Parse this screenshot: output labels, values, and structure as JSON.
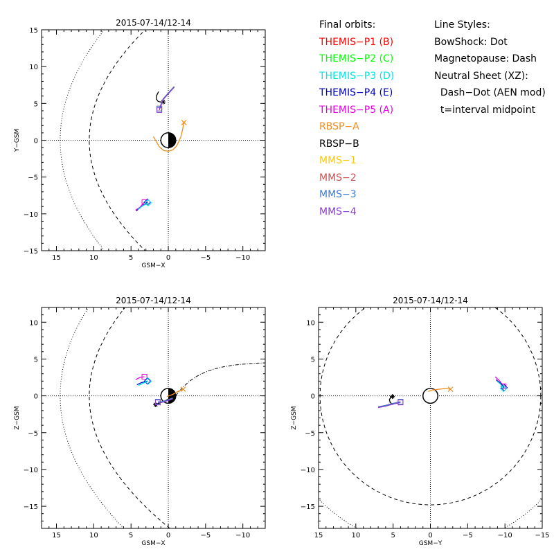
{
  "colors": {
    "THEMIS-P1 (B)": "#ff0000",
    "THEMIS-P2 (C)": "#00ff00",
    "THEMIS-P3 (D)": "#00e5e5",
    "THEMIS-P4 (E)": "#0000c8",
    "THEMIS-P5 (A)": "#e600e6",
    "RBSP-A": "#f28c1a",
    "RBSP-B": "#000000",
    "MMS-1": "#ffc800",
    "MMS-2": "#cc5050",
    "MMS-3": "#3c7ed2",
    "MMS-4": "#8a3cd2"
  },
  "legend": {
    "orbits_title": "Final orbits:",
    "orbits": [
      "THEMIS-P1 (B)",
      "THEMIS-P2 (C)",
      "THEMIS-P3 (D)",
      "THEMIS-P4 (E)",
      "THEMIS-P5 (A)",
      "RBSP-A",
      "RBSP-B",
      "MMS-1",
      "MMS-2",
      "MMS-3",
      "MMS-4"
    ],
    "styles_title": "Line Styles:",
    "styles": [
      "BowShock: Dot",
      "Magnetopause: Dash",
      "Neutral Sheet (XZ):",
      "  Dash-Dot (AEN mod)",
      "  t=interval midpoint"
    ]
  },
  "chart_data": [
    {
      "type": "line",
      "title": "2015-07-14/12-14",
      "xlabel": "GSM-X",
      "ylabel": "Y-GSM",
      "xlim": [
        17,
        -13
      ],
      "ylim": [
        15,
        -15
      ],
      "xticks": [
        15,
        10,
        5,
        0,
        -5,
        -10
      ],
      "yticks": [
        -15,
        -10,
        -5,
        0,
        5,
        10,
        15
      ],
      "boundaries": {
        "bowshock": "dot",
        "magnetopause": "dash",
        "zero_lines": "dot"
      },
      "earth": {
        "radius": 1,
        "night_side": "black"
      },
      "series": [
        {
          "name": "RBSP-A",
          "x": [
            2.0,
            1.2,
            0.6,
            0.0,
            -0.6,
            -1.1,
            -1.4,
            -1.7,
            -1.9,
            -2.1
          ],
          "y": [
            0.5,
            -0.9,
            -1.4,
            -1.5,
            -1.3,
            -0.8,
            -0.2,
            0.5,
            1.4,
            2.4
          ],
          "end_marker": "x"
        },
        {
          "name": "RBSP-B",
          "x": [
            1.3,
            1.6,
            1.6,
            1.4,
            1.1,
            0.7
          ],
          "y": [
            6.6,
            6.0,
            5.6,
            5.3,
            5.2,
            5.2
          ],
          "end_marker": "asterisk"
        },
        {
          "name": "MMS-1",
          "x": [
            -0.8,
            0.0,
            0.7,
            1.2
          ],
          "y": [
            7.3,
            6.4,
            5.6,
            4.3
          ],
          "end_marker": "square"
        },
        {
          "name": "MMS-2",
          "x": [
            -0.8,
            0.0,
            0.7,
            1.2
          ],
          "y": [
            7.3,
            6.4,
            5.6,
            4.3
          ],
          "end_marker": "square"
        },
        {
          "name": "MMS-3",
          "x": [
            -0.8,
            0.0,
            0.7,
            1.2
          ],
          "y": [
            7.3,
            6.4,
            5.6,
            4.3
          ],
          "end_marker": "square"
        },
        {
          "name": "MMS-4",
          "x": [
            -0.8,
            0.0,
            0.7,
            1.2
          ],
          "y": [
            7.2,
            6.3,
            5.5,
            4.1
          ],
          "end_marker": "square"
        },
        {
          "name": "THEMIS-P5 (A)",
          "x": [
            4.4,
            3.8,
            3.2
          ],
          "y": [
            -9.5,
            -9.1,
            -8.4
          ],
          "end_marker": "square"
        },
        {
          "name": "THEMIS-P4 (E)",
          "x": [
            4.3,
            3.6,
            2.8
          ],
          "y": [
            -9.6,
            -9.0,
            -8.4
          ],
          "end_marker": "diamond"
        },
        {
          "name": "THEMIS-P3 (D)",
          "x": [
            4.1,
            3.4,
            2.7
          ],
          "y": [
            -9.4,
            -8.9,
            -8.5
          ],
          "end_marker": "diamond"
        }
      ]
    },
    {
      "type": "line",
      "title": "2015-07-14/12-14",
      "xlabel": "GSM-X",
      "ylabel": "Z-GSM",
      "xlim": [
        17,
        -13
      ],
      "ylim": [
        12,
        -18
      ],
      "xticks": [
        15,
        10,
        5,
        0,
        -5,
        -10
      ],
      "yticks": [
        10,
        5,
        0,
        -5,
        -10,
        -15
      ],
      "boundaries": {
        "bowshock": "dot",
        "magnetopause": "dash",
        "neutral_sheet": "dash-dot",
        "zero_lines": "dot"
      },
      "earth": {
        "radius": 1,
        "night_side": "black"
      },
      "series": [
        {
          "name": "RBSP-A",
          "x": [
            0.2,
            -0.6,
            -1.3,
            -2.0
          ],
          "y": [
            -0.1,
            0.2,
            0.6,
            0.9
          ],
          "end_marker": "x"
        },
        {
          "name": "RBSP-B",
          "x": [
            -0.4,
            0.3,
            1.0,
            1.7
          ],
          "y": [
            -0.2,
            -0.6,
            -0.9,
            -1.2
          ],
          "end_marker": "asterisk"
        },
        {
          "name": "MMS-1",
          "x": [
            -0.6,
            0.2,
            0.9,
            1.4
          ],
          "y": [
            -0.3,
            -0.6,
            -0.8,
            -0.8
          ],
          "end_marker": "square"
        },
        {
          "name": "MMS-2",
          "x": [
            -0.6,
            0.2,
            0.9,
            1.4
          ],
          "y": [
            -0.3,
            -0.6,
            -0.8,
            -0.8
          ],
          "end_marker": "square"
        },
        {
          "name": "MMS-3",
          "x": [
            -0.6,
            0.2,
            0.9,
            1.4
          ],
          "y": [
            -0.3,
            -0.6,
            -0.8,
            -0.8
          ],
          "end_marker": "square"
        },
        {
          "name": "MMS-4",
          "x": [
            -0.6,
            0.2,
            0.9,
            1.4
          ],
          "y": [
            -0.4,
            -0.7,
            -0.9,
            -0.9
          ],
          "end_marker": "square"
        },
        {
          "name": "THEMIS-P5 (A)",
          "x": [
            4.4,
            3.8,
            3.2
          ],
          "y": [
            2.2,
            2.5,
            2.6
          ],
          "end_marker": "square"
        },
        {
          "name": "THEMIS-P4 (E)",
          "x": [
            4.2,
            3.6,
            2.8
          ],
          "y": [
            1.5,
            1.8,
            2.0
          ],
          "end_marker": "diamond"
        },
        {
          "name": "THEMIS-P3 (D)",
          "x": [
            4.0,
            3.4,
            2.7
          ],
          "y": [
            1.4,
            1.7,
            2.0
          ],
          "end_marker": "diamond"
        }
      ]
    },
    {
      "type": "line",
      "title": "2015-07-14/12-14",
      "xlabel": "GSM-Y",
      "ylabel": "Z-GSM",
      "xlim": [
        15,
        -15
      ],
      "ylim": [
        12,
        -18
      ],
      "xticks": [
        15,
        10,
        5,
        0,
        -5,
        -10,
        -15
      ],
      "yticks": [
        10,
        5,
        0,
        -5,
        -10,
        -15
      ],
      "boundaries": {
        "bowshock": "dot",
        "magnetopause": "dash",
        "zero_lines": "dot"
      },
      "earth": {
        "radius": 1,
        "night_side": "none"
      },
      "series": [
        {
          "name": "RBSP-A",
          "x": [
            0.3,
            -0.3,
            -1.2,
            -2.0,
            -2.7
          ],
          "y": [
            0.6,
            0.8,
            0.9,
            1.0,
            0.9
          ],
          "end_marker": "x"
        },
        {
          "name": "RBSP-B",
          "x": [
            5.0,
            5.4,
            5.5,
            5.3,
            5.1
          ],
          "y": [
            -1.2,
            -0.9,
            -0.5,
            -0.2,
            -0.1
          ],
          "end_marker": "asterisk"
        },
        {
          "name": "MMS-1",
          "x": [
            7.0,
            6.0,
            4.9,
            4.0
          ],
          "y": [
            -1.5,
            -1.3,
            -1.0,
            -0.8
          ],
          "end_marker": "square"
        },
        {
          "name": "MMS-2",
          "x": [
            7.0,
            6.0,
            4.9,
            4.0
          ],
          "y": [
            -1.5,
            -1.3,
            -1.0,
            -0.8
          ],
          "end_marker": "square"
        },
        {
          "name": "MMS-3",
          "x": [
            7.0,
            6.0,
            4.9,
            4.0
          ],
          "y": [
            -1.5,
            -1.3,
            -1.0,
            -0.8
          ],
          "end_marker": "square"
        },
        {
          "name": "MMS-4",
          "x": [
            7.0,
            6.0,
            4.9,
            4.0
          ],
          "y": [
            -1.6,
            -1.4,
            -1.1,
            -0.9
          ],
          "end_marker": "square"
        },
        {
          "name": "THEMIS-P5 (A)",
          "x": [
            -8.7,
            -9.3,
            -9.8
          ],
          "y": [
            2.6,
            2.0,
            1.3
          ],
          "end_marker": "square"
        },
        {
          "name": "THEMIS-P4 (E)",
          "x": [
            -8.8,
            -9.4,
            -9.9
          ],
          "y": [
            2.2,
            1.7,
            1.1
          ],
          "end_marker": "diamond"
        },
        {
          "name": "THEMIS-P3 (D)",
          "x": [
            -8.9,
            -9.4,
            -9.8
          ],
          "y": [
            2.0,
            1.6,
            1.0
          ],
          "end_marker": "diamond"
        }
      ]
    }
  ]
}
